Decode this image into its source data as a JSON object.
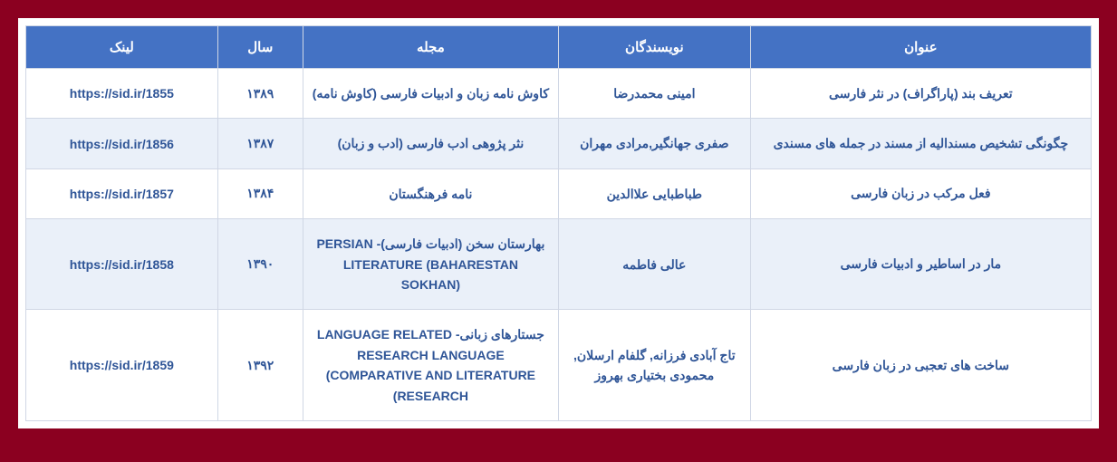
{
  "table": {
    "headers": {
      "title": "عنوان",
      "authors": "نویسندگان",
      "journal": "مجله",
      "year": "سال",
      "link": "لینک"
    },
    "rows": [
      {
        "title": "تعریف بند (پاراگراف) در نثر فارسی",
        "authors": "امینی محمدرضا",
        "journal": "کاوش نامه زبان و ادبیات فارسی (کاوش نامه)",
        "year": "۱۳۸۹",
        "link": "https://sid.ir/1855"
      },
      {
        "title": "چگونگی تشخیص مسندالیه از مسند در جمله های مسندی",
        "authors": "صفری جهانگیر,مرادی مهران",
        "journal": "نثر پژوهی ادب فارسی (ادب و زبان)",
        "year": "۱۳۸۷",
        "link": "https://sid.ir/1856"
      },
      {
        "title": "فعل مرکب در زبان فارسی",
        "authors": "طباطبایی علاالدین",
        "journal": "نامه فرهنگستان",
        "year": "۱۳۸۴",
        "link": "https://sid.ir/1857"
      },
      {
        "title": "مار در اساطیر و ادبیات فارسی",
        "authors": "عالی فاطمه",
        "journal": "بهارستان سخن (ادبیات فارسی)- PERSIAN LITERATURE (BAHARESTAN SOKHAN)",
        "year": "۱۳۹۰",
        "link": "https://sid.ir/1858"
      },
      {
        "title": "ساخت های تعجبی در زبان فارسی",
        "authors": "تاج آبادی فرزانه, گلفام ارسلان, محمودی بختیاری بهروز",
        "journal": "جستارهای زبانی- LANGUAGE RELATED RESEARCH LANGUAGE (COMPARATIVE AND LITERATURE (RESEARCH",
        "year": "۱۳۹۲",
        "link": "https://sid.ir/1859"
      }
    ],
    "colors": {
      "page_background": "#8b0020",
      "wrapper_background": "#ffffff",
      "header_background": "#4472c4",
      "header_text": "#ffffff",
      "row_odd_background": "#ffffff",
      "row_even_background": "#eaf0f9",
      "cell_text": "#2f5597",
      "border_color": "#d0d7e5"
    },
    "typography": {
      "header_fontsize": 15,
      "cell_fontsize": 14,
      "font_family": "Tahoma",
      "font_weight": "bold"
    },
    "layout": {
      "direction": "rtl",
      "col_widths_pct": {
        "title": 32,
        "authors": 18,
        "journal": 24,
        "year": 8,
        "link": 18
      }
    }
  }
}
